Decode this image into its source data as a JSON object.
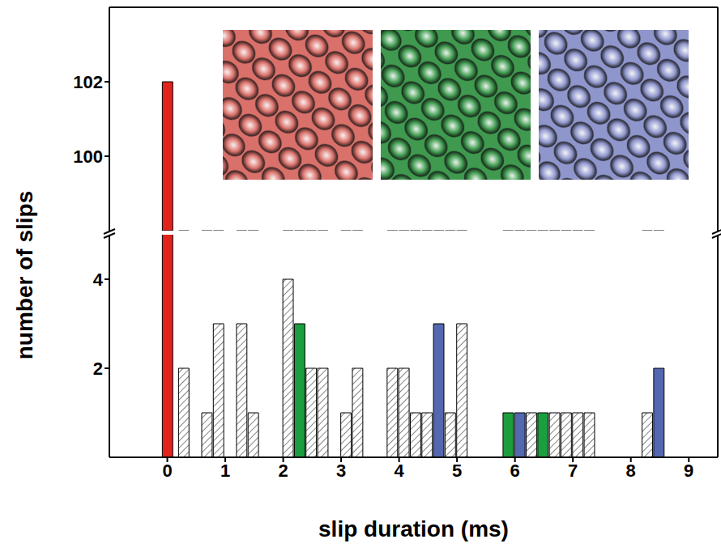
{
  "chart_data": {
    "type": "bar",
    "x_label": "slip duration (ms)",
    "y_label": "number of slips",
    "xlim": [
      -1,
      9.5
    ],
    "xticks": [
      0,
      1,
      2,
      3,
      4,
      5,
      6,
      7,
      8,
      9
    ],
    "ylim": [
      0,
      104
    ],
    "yticks": [
      2,
      4,
      100,
      102
    ],
    "y_break": [
      5,
      98
    ],
    "bar_width": 0.2,
    "series": [
      {
        "color": "#e0231c",
        "x": [
          0
        ],
        "values": [
          102
        ]
      },
      {
        "color": "#1b9e3e",
        "x": [
          2.28,
          5.88,
          6.48
        ],
        "values": [
          3,
          1,
          1
        ]
      },
      {
        "color": "#5468b0",
        "x": [
          4.68,
          6.08,
          8.48
        ],
        "values": [
          3,
          1,
          2
        ]
      },
      {
        "color": "#333333",
        "marker": "hatch",
        "x": [
          0.28,
          0.68,
          0.88,
          1.28,
          1.48,
          2.08,
          2.48,
          2.68,
          3.08,
          3.28,
          3.88,
          4.08,
          4.28,
          4.48,
          4.88,
          5.08,
          6.28,
          6.68,
          6.88,
          7.08,
          7.28,
          8.28
        ],
        "values": [
          2,
          1,
          3,
          3,
          1,
          4,
          2,
          2,
          1,
          2,
          2,
          2,
          1,
          1,
          1,
          3,
          1,
          1,
          1,
          1,
          1,
          1
        ]
      }
    ]
  }
}
